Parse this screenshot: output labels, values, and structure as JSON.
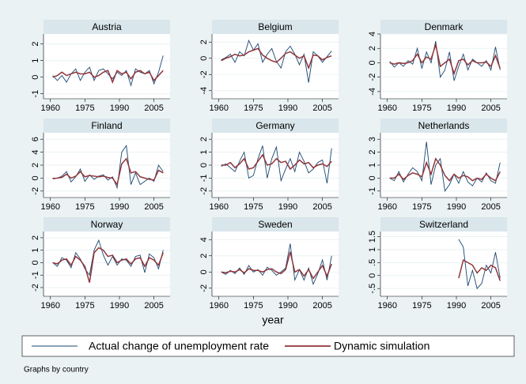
{
  "chart_data": [
    {
      "type": "line",
      "title": "Austria",
      "x": [
        1961,
        1963,
        1965,
        1967,
        1969,
        1971,
        1973,
        1975,
        1977,
        1979,
        1981,
        1983,
        1985,
        1987,
        1989,
        1991,
        1993,
        1995,
        1997,
        1999,
        2001,
        2003,
        2005,
        2007,
        2009
      ],
      "series": [
        {
          "name": "Actual change of unemployment rate",
          "color": "#1a476f",
          "values": [
            0.1,
            -0.2,
            0.1,
            -0.3,
            0.2,
            0.5,
            -0.2,
            0.3,
            0.6,
            -0.2,
            0.4,
            0.5,
            0.2,
            -0.1,
            0.3,
            0.1,
            0.4,
            -0.5,
            0.5,
            0.3,
            0.2,
            0.4,
            -0.4,
            0.3,
            1.3
          ]
        },
        {
          "name": "Dynamic simulation",
          "color": "#90353b",
          "values": [
            0,
            0.1,
            0.3,
            0.1,
            0.2,
            0.3,
            0.2,
            0.2,
            0.3,
            0,
            0.1,
            0.3,
            0.4,
            -0.3,
            0.4,
            0.2,
            0.3,
            -0.1,
            0.3,
            0.4,
            0.2,
            0.3,
            -0.2,
            0.1,
            0.4
          ]
        }
      ],
      "xlim": [
        1957,
        2012
      ],
      "xticks": [
        1960,
        1975,
        1990,
        2005
      ],
      "ylim": [
        -1.3,
        2.6
      ],
      "yticks": [
        -1,
        0,
        1,
        2
      ]
    },
    {
      "type": "line",
      "title": "Belgium",
      "x": [
        1961,
        1963,
        1965,
        1967,
        1969,
        1971,
        1973,
        1975,
        1977,
        1979,
        1981,
        1983,
        1985,
        1987,
        1989,
        1991,
        1993,
        1995,
        1997,
        1999,
        2001,
        2003,
        2005,
        2007,
        2009
      ],
      "series": [
        {
          "name": "Actual change of unemployment rate",
          "color": "#1a476f",
          "values": [
            -0.2,
            0.1,
            0.5,
            -0.5,
            0.8,
            0.3,
            2.2,
            1.0,
            1.8,
            -0.5,
            0.5,
            1.2,
            -0.4,
            -1.2,
            0.8,
            1.5,
            0.5,
            -0.8,
            0.5,
            -3.0,
            0.8,
            0.3,
            -0.5,
            0.2,
            0.9
          ]
        },
        {
          "name": "Dynamic simulation",
          "color": "#90353b",
          "values": [
            -0.3,
            0,
            0.2,
            0.5,
            0.3,
            0.4,
            0.8,
            1,
            1.2,
            0.4,
            0,
            -0.3,
            -0.5,
            0,
            0.6,
            0.8,
            0.4,
            0,
            0.3,
            -1.2,
            0.4,
            0.3,
            -0.2,
            0.1,
            0.3
          ]
        }
      ],
      "xlim": [
        1957,
        2012
      ],
      "xticks": [
        1960,
        1975,
        1990,
        2005
      ],
      "ylim": [
        -5,
        3
      ],
      "yticks": [
        -4,
        -2,
        0,
        2
      ]
    },
    {
      "type": "line",
      "title": "Denmark",
      "x": [
        1961,
        1963,
        1965,
        1967,
        1969,
        1971,
        1973,
        1975,
        1977,
        1979,
        1981,
        1983,
        1985,
        1987,
        1989,
        1991,
        1993,
        1995,
        1997,
        1999,
        2001,
        2003,
        2005,
        2007,
        2009
      ],
      "series": [
        {
          "name": "Actual change of unemployment rate",
          "color": "#1a476f",
          "values": [
            0.2,
            -0.6,
            0,
            -0.5,
            0.3,
            -0.2,
            2,
            -0.8,
            1.5,
            0,
            3,
            -2,
            -1,
            1.5,
            -2.5,
            -0.5,
            1.2,
            -1,
            0.5,
            0,
            -0.5,
            0.3,
            -1,
            2.2,
            -1
          ]
        },
        {
          "name": "Dynamic simulation",
          "color": "#90353b",
          "values": [
            0,
            -0.2,
            0,
            -0.1,
            0,
            0.3,
            1.2,
            0,
            0.8,
            0.5,
            2.5,
            -0.5,
            0,
            0.5,
            -1.5,
            0.3,
            0.5,
            -0.3,
            0.3,
            0,
            0,
            0.1,
            -0.5,
            1,
            -0.8
          ]
        }
      ],
      "xlim": [
        1957,
        2012
      ],
      "xticks": [
        1960,
        1975,
        1990,
        2005
      ],
      "ylim": [
        -5,
        4
      ],
      "yticks": [
        -4,
        -2,
        0,
        2,
        4
      ]
    },
    {
      "type": "line",
      "title": "Finland",
      "x": [
        1961,
        1963,
        1965,
        1967,
        1969,
        1971,
        1973,
        1975,
        1977,
        1979,
        1981,
        1983,
        1985,
        1987,
        1989,
        1991,
        1993,
        1995,
        1997,
        1999,
        2001,
        2003,
        2005,
        2007,
        2009
      ],
      "series": [
        {
          "name": "Actual change of unemployment rate",
          "color": "#1a476f",
          "values": [
            0,
            0,
            0.3,
            1,
            -0.6,
            0.2,
            1.4,
            -0.5,
            0.5,
            -0.2,
            0.3,
            0.5,
            -0.3,
            0.2,
            -1.5,
            4,
            5,
            -1,
            0.8,
            -1,
            -0.5,
            0,
            -0.5,
            2,
            1
          ]
        },
        {
          "name": "Dynamic simulation",
          "color": "#90353b",
          "values": [
            -0.1,
            0,
            0.1,
            0.6,
            0,
            0.3,
            1,
            0.2,
            0.4,
            0.3,
            0.2,
            0.3,
            0.1,
            0,
            -1,
            2.2,
            3,
            0.8,
            1,
            0.2,
            0,
            -0.2,
            -0.3,
            1.2,
            0.8
          ]
        }
      ],
      "xlim": [
        1957,
        2012
      ],
      "xticks": [
        1960,
        1975,
        1990,
        2005
      ],
      "ylim": [
        -3,
        7
      ],
      "yticks": [
        -2,
        0,
        2,
        4,
        6
      ]
    },
    {
      "type": "line",
      "title": "Germany",
      "x": [
        1961,
        1963,
        1965,
        1967,
        1969,
        1971,
        1973,
        1975,
        1977,
        1979,
        1981,
        1983,
        1985,
        1987,
        1989,
        1991,
        1993,
        1995,
        1997,
        1999,
        2001,
        2003,
        2005,
        2007,
        2009
      ],
      "series": [
        {
          "name": "Actual change of unemployment rate",
          "color": "#1a476f",
          "values": [
            -0.1,
            0.1,
            -0.2,
            -0.5,
            0.3,
            1,
            -1,
            -0.8,
            0.5,
            1.5,
            -1,
            0.5,
            1.4,
            -1.2,
            -0.3,
            0.5,
            -0.5,
            1,
            0.3,
            -0.6,
            -0.3,
            0.2,
            0.4,
            -1.4,
            1.3
          ]
        },
        {
          "name": "Dynamic simulation",
          "color": "#90353b",
          "values": [
            0,
            0,
            0.2,
            -0.2,
            0.1,
            0.5,
            -0.3,
            -0.2,
            0.3,
            0.8,
            0,
            0.1,
            0.5,
            0.2,
            0.3,
            -0.3,
            0,
            0.4,
            0.1,
            0.2,
            -0.2,
            0,
            0.1,
            -0.1,
            0.3
          ]
        }
      ],
      "xlim": [
        1957,
        2012
      ],
      "xticks": [
        1960,
        1975,
        1990,
        2005
      ],
      "ylim": [
        -2.5,
        2.5
      ],
      "yticks": [
        -2,
        -1,
        0,
        1,
        2
      ]
    },
    {
      "type": "line",
      "title": "Netherlands",
      "x": [
        1961,
        1963,
        1965,
        1967,
        1969,
        1971,
        1973,
        1975,
        1977,
        1979,
        1981,
        1983,
        1985,
        1987,
        1989,
        1991,
        1993,
        1995,
        1997,
        1999,
        2001,
        2003,
        2005,
        2007,
        2009
      ],
      "series": [
        {
          "name": "Actual change of unemployment rate",
          "color": "#1a476f",
          "values": [
            0,
            -0.2,
            0.5,
            -0.3,
            0.3,
            0.8,
            0.5,
            -0.2,
            2.8,
            -0.5,
            1,
            1.5,
            -1,
            -0.5,
            0.3,
            -0.4,
            0.5,
            -0.3,
            -0.6,
            0,
            -0.3,
            0.4,
            -0.2,
            -0.4,
            1.2
          ]
        },
        {
          "name": "Dynamic simulation",
          "color": "#90353b",
          "values": [
            0,
            0,
            0.3,
            -0.1,
            0.2,
            0.4,
            0.3,
            0.1,
            1.2,
            0.3,
            1.5,
            1,
            0.2,
            -0.2,
            0.3,
            0,
            0.2,
            0.1,
            -0.2,
            0,
            -0.1,
            0.3,
            0,
            -0.2,
            0.5
          ]
        }
      ],
      "xlim": [
        1957,
        2012
      ],
      "xticks": [
        1960,
        1975,
        1990,
        2005
      ],
      "ylim": [
        -1.5,
        3.5
      ],
      "yticks": [
        -1,
        0,
        1,
        2,
        3
      ]
    },
    {
      "type": "line",
      "title": "Norway",
      "x": [
        1961,
        1963,
        1965,
        1967,
        1969,
        1971,
        1973,
        1975,
        1977,
        1979,
        1981,
        1983,
        1985,
        1987,
        1989,
        1991,
        1993,
        1995,
        1997,
        1999,
        2001,
        2003,
        2005,
        2007,
        2009
      ],
      "series": [
        {
          "name": "Actual change of unemployment rate",
          "color": "#1a476f",
          "values": [
            0,
            -0.3,
            0.4,
            0.2,
            -0.4,
            0.8,
            0.3,
            -0.5,
            -1,
            1,
            1.8,
            0.6,
            -0.2,
            0.5,
            -0.2,
            0.3,
            0.2,
            -0.3,
            0.5,
            0.6,
            -0.8,
            0.7,
            0.4,
            -0.5,
            1
          ]
        },
        {
          "name": "Dynamic simulation",
          "color": "#90353b",
          "values": [
            0,
            -0.1,
            0.2,
            0.3,
            -0.2,
            0.5,
            0.2,
            -0.3,
            -1.6,
            0.8,
            1.2,
            1,
            0.5,
            0.6,
            0,
            0.2,
            0.3,
            -0.1,
            0.3,
            0.4,
            -0.3,
            0.4,
            0.2,
            -0.2,
            0.8
          ]
        }
      ],
      "xlim": [
        1957,
        2012
      ],
      "xticks": [
        1960,
        1975,
        1990,
        2005
      ],
      "ylim": [
        -2.7,
        2.5
      ],
      "yticks": [
        -2,
        -1,
        0,
        1,
        2
      ]
    },
    {
      "type": "line",
      "title": "Sweden",
      "x": [
        1961,
        1963,
        1965,
        1967,
        1969,
        1971,
        1973,
        1975,
        1977,
        1979,
        1981,
        1983,
        1985,
        1987,
        1989,
        1991,
        1993,
        1995,
        1997,
        1999,
        2001,
        2003,
        2005,
        2007,
        2009
      ],
      "series": [
        {
          "name": "Actual change of unemployment rate",
          "color": "#1a476f",
          "values": [
            0,
            -0.3,
            0.2,
            -0.2,
            0.5,
            -0.3,
            0.8,
            0,
            0.3,
            -0.4,
            0.6,
            0.2,
            -0.4,
            0,
            0.5,
            3.5,
            -1,
            0.3,
            -1,
            0.5,
            -1.5,
            -0.2,
            1.5,
            -1,
            2
          ]
        },
        {
          "name": "Dynamic simulation",
          "color": "#90353b",
          "values": [
            0,
            -0.1,
            0.1,
            0,
            0.3,
            -0.1,
            0.4,
            0.2,
            0.2,
            0,
            0.3,
            0.4,
            0,
            -0.2,
            0.3,
            2.5,
            0,
            0.3,
            -0.5,
            0.3,
            -0.8,
            0,
            0.8,
            -0.5,
            1
          ]
        }
      ],
      "xlim": [
        1957,
        2012
      ],
      "xticks": [
        1960,
        1975,
        1990,
        2005
      ],
      "ylim": [
        -3,
        5
      ],
      "yticks": [
        -2,
        0,
        2,
        4
      ]
    },
    {
      "type": "line",
      "title": "Switzerland",
      "x": [
        1991,
        1993,
        1995,
        1997,
        1999,
        2001,
        2003,
        2005,
        2007,
        2009
      ],
      "series": [
        {
          "name": "Actual change of unemployment rate",
          "color": "#1a476f",
          "values": [
            1.4,
            1.1,
            -0.4,
            0.2,
            -0.5,
            -0.3,
            0.4,
            0.1,
            0.9,
            -0.1
          ]
        },
        {
          "name": "Dynamic simulation",
          "color": "#90353b",
          "values": [
            -0.1,
            0.6,
            0.5,
            0.4,
            0.1,
            0.3,
            0.2,
            0.4,
            0.3,
            -0.2
          ]
        }
      ],
      "xlim": [
        1957,
        2012
      ],
      "xticks": [
        1960,
        1975,
        1990,
        2005
      ],
      "ylim": [
        -0.8,
        1.7
      ],
      "yticks": [
        {
          "value": -0.5,
          "label": "-.5"
        },
        0,
        {
          "value": 0.5,
          "label": ".5"
        },
        1,
        1.5
      ]
    }
  ],
  "x_label": "year",
  "note": "Graphs by country"
}
